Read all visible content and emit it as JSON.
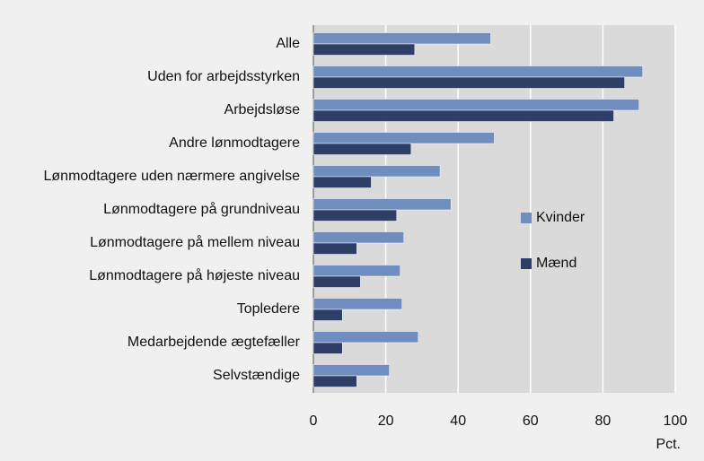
{
  "chart_data": {
    "type": "barh",
    "categories": [
      "Alle",
      "Uden for arbejdsstyrken",
      "Arbejdsløse",
      "Andre lønmodtagere",
      "Lønmodtagere uden nærmere angivelse",
      "Lønmodtagere på grundniveau",
      "Lønmodtagere på mellem niveau",
      "Lønmodtagere på højeste niveau",
      "Topledere",
      "Medarbejdende ægtefæller",
      "Selvstændige"
    ],
    "series": [
      {
        "name": "Kvinder",
        "color": "#6f8ebf",
        "values": [
          49,
          91,
          90,
          50,
          35,
          38,
          25,
          24,
          24.5,
          29,
          21
        ]
      },
      {
        "name": "Mænd",
        "color": "#2e3e66",
        "values": [
          28,
          86,
          83,
          27,
          16,
          23,
          12,
          13,
          8,
          8,
          12
        ]
      }
    ],
    "xlabel": "Pct.",
    "xlim": [
      0,
      100
    ],
    "xticks": [
      0,
      20,
      40,
      60,
      80,
      100
    ],
    "grid": true
  }
}
